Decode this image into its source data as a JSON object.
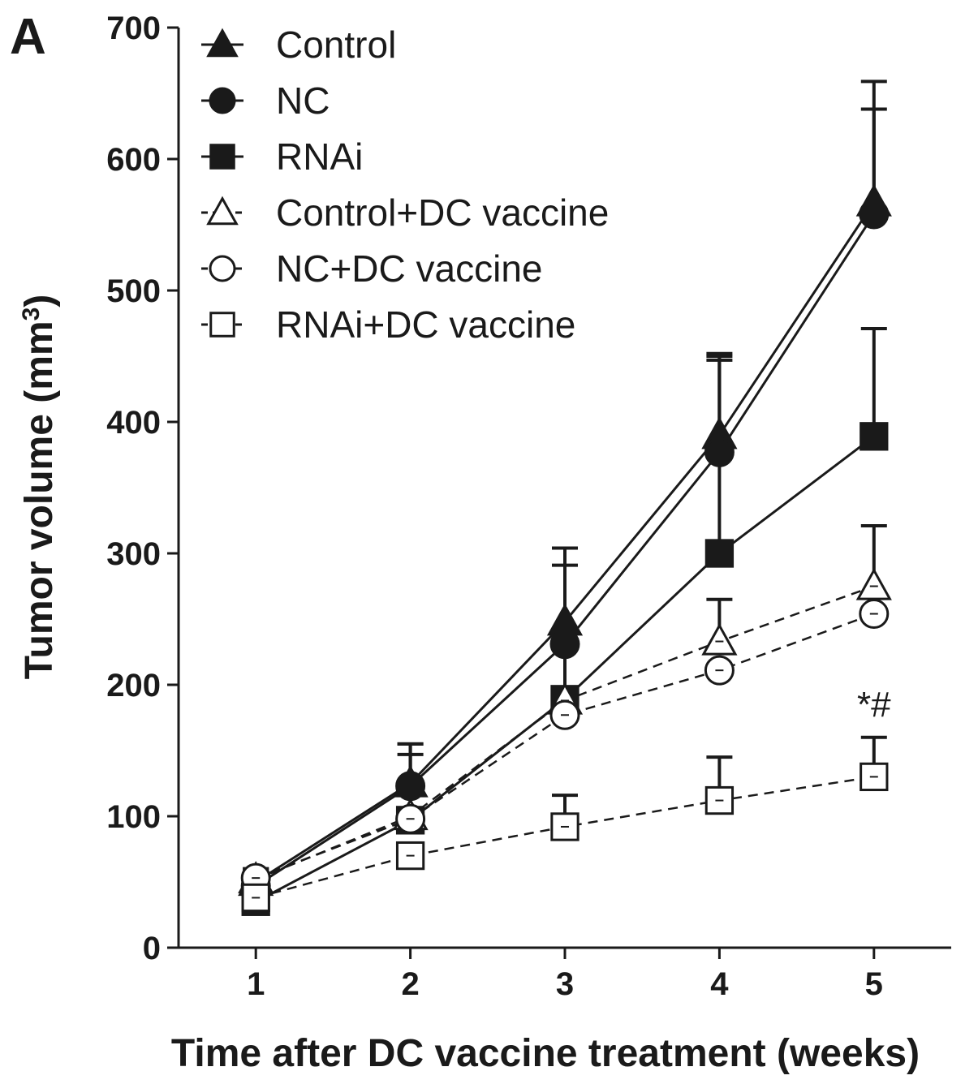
{
  "chart_data": {
    "type": "line",
    "panel_label": "A",
    "title": "",
    "xlabel": "Time after DC vaccine treatment (weeks)",
    "ylabel_main": "Tumor volume (mm",
    "ylabel_sup": "3",
    "ylabel_close": ")",
    "x": [
      1,
      2,
      3,
      4,
      5
    ],
    "xlim": [
      0.5,
      5.5
    ],
    "ylim": [
      0,
      700
    ],
    "x_ticks": [
      "1",
      "2",
      "3",
      "4",
      "5"
    ],
    "y_ticks": [
      "0",
      "100",
      "200",
      "300",
      "400",
      "500",
      "600",
      "700"
    ],
    "legend_position": "top-left",
    "series": [
      {
        "name": "Control",
        "marker": "triangle",
        "filled": true,
        "dashed": false,
        "values": [
          50,
          125,
          248,
          390,
          567
        ],
        "errors": [
          10,
          30,
          56,
          62,
          92
        ]
      },
      {
        "name": "NC",
        "marker": "circle",
        "filled": true,
        "dashed": false,
        "values": [
          47,
          123,
          231,
          377,
          558
        ],
        "errors": [
          13,
          32,
          60,
          70,
          80
        ]
      },
      {
        "name": "RNAi",
        "marker": "square",
        "filled": true,
        "dashed": false,
        "values": [
          35,
          97,
          189,
          300,
          389
        ],
        "errors": [
          10,
          50,
          40,
          150,
          82
        ]
      },
      {
        "name": "Control+DC vaccine",
        "marker": "triangle",
        "filled": false,
        "dashed": true,
        "values": [
          52,
          100,
          188,
          233,
          275
        ],
        "errors": [
          0,
          0,
          40,
          32,
          46
        ]
      },
      {
        "name": "NC+DC vaccine",
        "marker": "circle",
        "filled": false,
        "dashed": true,
        "values": [
          53,
          98,
          177,
          211,
          254
        ],
        "errors": [
          0,
          0,
          0,
          0,
          0
        ]
      },
      {
        "name": "RNAi+DC vaccine",
        "marker": "square",
        "filled": false,
        "dashed": true,
        "values": [
          38,
          70,
          92,
          112,
          130
        ],
        "errors": [
          0,
          0,
          24,
          33,
          30
        ]
      }
    ],
    "annotation": "*#"
  },
  "colors": {
    "ink": "#1a1a1a",
    "background": "#ffffff"
  }
}
